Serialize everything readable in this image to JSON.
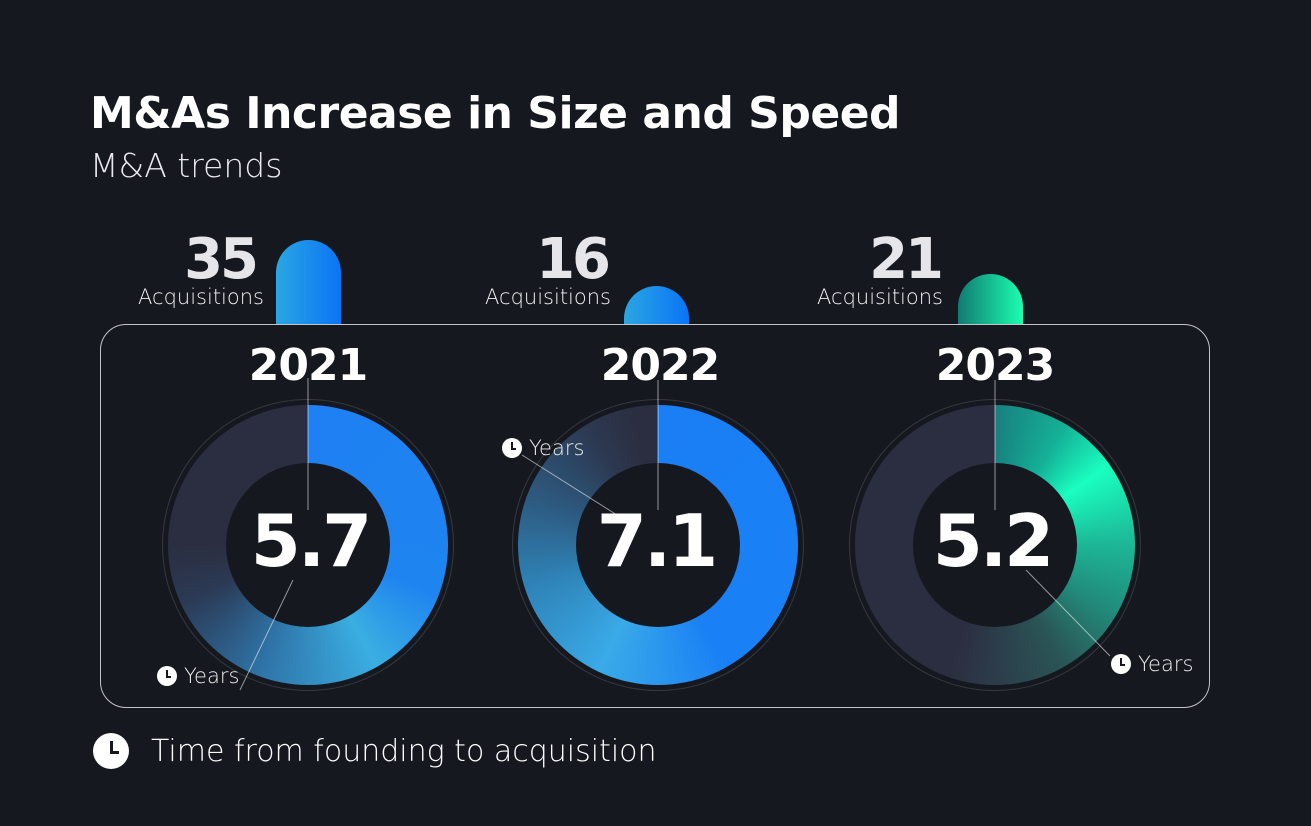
{
  "title": "M&As Increase in Size and Speed",
  "subtitle": "M&A trends",
  "legend": {
    "icon": "clock-icon",
    "label": "Time from founding to acquisition"
  },
  "colors": {
    "background": "#161820",
    "blue": "#1a7ff5",
    "light_blue": "#3aaee0",
    "green": "#1affc0",
    "teal": "#18807f",
    "track": "#2b2e40"
  },
  "chart_data": {
    "type": "donut",
    "title": "M&As Increase in Size and Speed",
    "subtitle": "M&A trends",
    "categories": [
      "2021",
      "2022",
      "2023"
    ],
    "series": [
      {
        "name": "Acquisitions",
        "unit_label": "Acquisitions",
        "values": [
          35,
          16,
          21
        ]
      },
      {
        "name": "Time from founding to acquisition",
        "unit_label": "Years",
        "values": [
          5.7,
          7.1,
          5.2
        ]
      }
    ],
    "years": [
      {
        "year": "2021",
        "acquisitions": "35",
        "acq_label": "Acquisitions",
        "value": "5.7",
        "unit": "Years"
      },
      {
        "year": "2022",
        "acquisitions": "16",
        "acq_label": "Acquisitions",
        "value": "7.1",
        "unit": "Years"
      },
      {
        "year": "2023",
        "acquisitions": "21",
        "acq_label": "Acquisitions",
        "value": "5.2",
        "unit": "Years"
      }
    ]
  }
}
